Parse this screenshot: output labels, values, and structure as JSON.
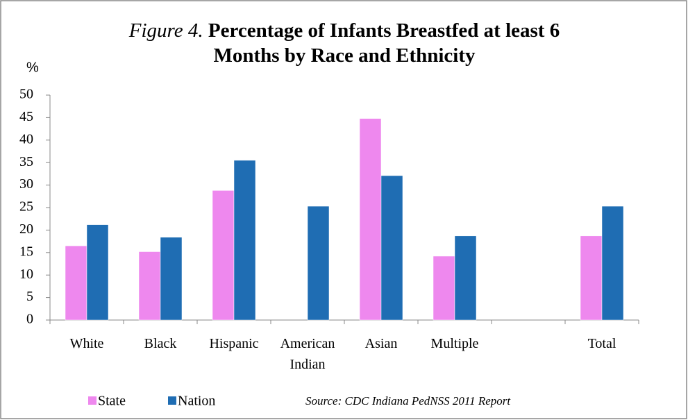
{
  "chart_data": {
    "type": "bar",
    "title_label": "Figure 4.",
    "title": "Percentage of Infants Breastfed at least 6 Months by Race and Ethnicity",
    "y_label": "%",
    "categories": [
      "White",
      "Black",
      "Hispanic",
      "American Indian",
      "Asian",
      "Multiple",
      null,
      "Total"
    ],
    "series": [
      {
        "name": "State",
        "color": "#ee88ee",
        "values": [
          16.5,
          15.2,
          28.8,
          null,
          44.8,
          14.2,
          null,
          18.7
        ]
      },
      {
        "name": "Nation",
        "color": "#1f6db3",
        "values": [
          21.2,
          18.4,
          35.5,
          25.3,
          32.1,
          18.7,
          null,
          25.3
        ]
      }
    ],
    "ylim": [
      0,
      50
    ],
    "yticks": [
      0,
      5,
      10,
      15,
      20,
      25,
      30,
      35,
      40,
      45,
      50
    ],
    "annotation": "Source: CDC Indiana PedNSS 2011 Report",
    "legend": "bottom-left"
  }
}
